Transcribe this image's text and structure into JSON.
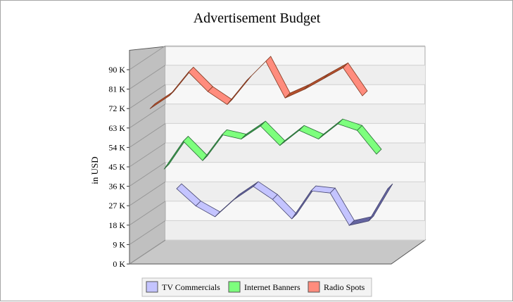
{
  "chart_data": {
    "type": "line",
    "title": "Advertisement Budget",
    "ylabel": "in USD",
    "xlabel": "",
    "ylim": [
      0,
      90000
    ],
    "y_ticks": [
      {
        "value": 0,
        "label": "0 K"
      },
      {
        "value": 9000,
        "label": "9 K"
      },
      {
        "value": 18000,
        "label": "18 K"
      },
      {
        "value": 27000,
        "label": "27 K"
      },
      {
        "value": 36000,
        "label": "36 K"
      },
      {
        "value": 45000,
        "label": "45 K"
      },
      {
        "value": 54000,
        "label": "54 K"
      },
      {
        "value": 63000,
        "label": "63 K"
      },
      {
        "value": 72000,
        "label": "72 K"
      },
      {
        "value": 81000,
        "label": "81 K"
      },
      {
        "value": 90000,
        "label": "90 K"
      }
    ],
    "grid": true,
    "legend_position": "bottom-center",
    "series": [
      {
        "name": "TV Commercials",
        "color": "#c4c4ff",
        "side_color": "#6464a0",
        "values": [
          31000,
          23000,
          18000,
          26000,
          32000,
          26000,
          17000,
          30000,
          29000,
          14000,
          16000,
          31000
        ]
      },
      {
        "name": "Internet Banners",
        "color": "#7dff7d",
        "side_color": "#3c9a50",
        "values": [
          40000,
          53000,
          44000,
          56000,
          54000,
          60000,
          51000,
          58000,
          54000,
          61000,
          58000,
          47000
        ]
      },
      {
        "name": "Radio Spots",
        "color": "#ff8c7d",
        "side_color": "#b4502d",
        "values": [
          68000,
          74000,
          85000,
          76000,
          70000,
          81000,
          90000,
          73000,
          77000,
          82000,
          87000,
          74000
        ]
      }
    ]
  }
}
